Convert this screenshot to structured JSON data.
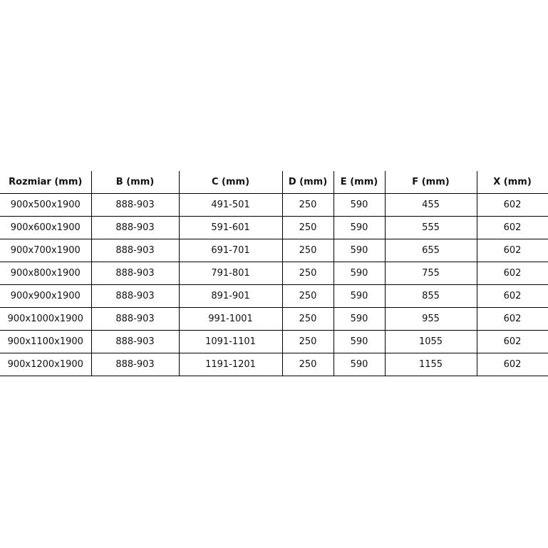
{
  "table": {
    "headers": [
      "Rozmiar (mm)",
      "B (mm)",
      "C (mm)",
      "D (mm)",
      "E (mm)",
      "F (mm)",
      "X (mm)"
    ],
    "rows": [
      [
        "900x500x1900",
        "888-903",
        "491-501",
        "250",
        "590",
        "455",
        "602"
      ],
      [
        "900x600x1900",
        "888-903",
        "591-601",
        "250",
        "590",
        "555",
        "602"
      ],
      [
        "900x700x1900",
        "888-903",
        "691-701",
        "250",
        "590",
        "655",
        "602"
      ],
      [
        "900x800x1900",
        "888-903",
        "791-801",
        "250",
        "590",
        "755",
        "602"
      ],
      [
        "900x900x1900",
        "888-903",
        "891-901",
        "250",
        "590",
        "855",
        "602"
      ],
      [
        "900x1000x1900",
        "888-903",
        "991-1001",
        "250",
        "590",
        "955",
        "602"
      ],
      [
        "900x1100x1900",
        "888-903",
        "1091-1101",
        "250",
        "590",
        "1055",
        "602"
      ],
      [
        "900x1200x1900",
        "888-903",
        "1191-1201",
        "250",
        "590",
        "1155",
        "602"
      ]
    ]
  }
}
